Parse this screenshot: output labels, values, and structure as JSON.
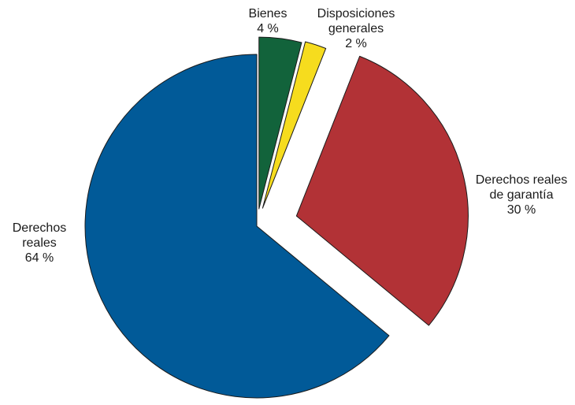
{
  "chart_data": {
    "type": "pie",
    "title": "",
    "start": "12 o'clock",
    "direction": "clockwise",
    "exploded": true,
    "slices": [
      {
        "id": "bienes",
        "label_lines": [
          "Bienes"
        ],
        "value_label": "4 %",
        "value": 4,
        "color": "#12633b"
      },
      {
        "id": "disposiciones-generales",
        "label_lines": [
          "Disposiciones",
          "generales"
        ],
        "value_label": "2 %",
        "value": 2,
        "color": "#f6dc1e"
      },
      {
        "id": "derechos-reales-de-garantia",
        "label_lines": [
          "Derechos reales",
          "de garantía"
        ],
        "value_label": "30 %",
        "value": 30,
        "color": "#b23236"
      },
      {
        "id": "derechos-reales",
        "label_lines": [
          "Derechos",
          "reales"
        ],
        "value_label": "64 %",
        "value": 64,
        "color": "#015a98"
      }
    ]
  }
}
